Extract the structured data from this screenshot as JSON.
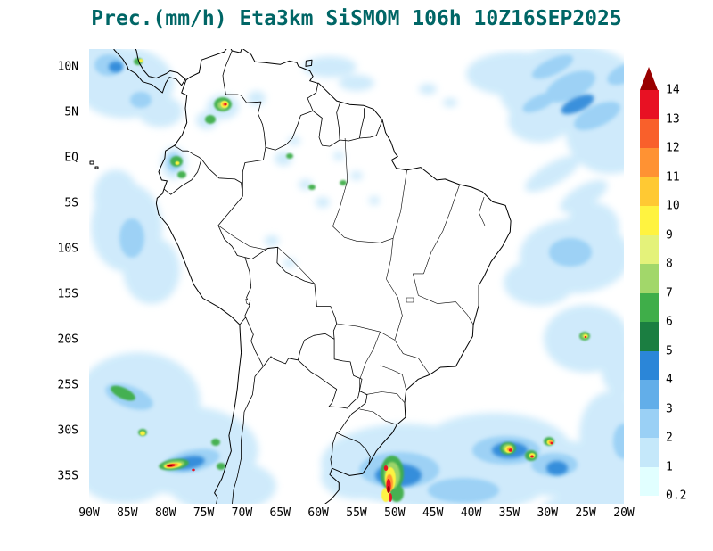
{
  "title": {
    "text": "Prec.(mm/h) Eta3km SiSMOM 106h 10Z16SEP2025",
    "color": "#006666"
  },
  "map": {
    "lat_labels": [
      "10N",
      "5N",
      "EQ",
      "5S",
      "10S",
      "15S",
      "20S",
      "25S",
      "30S",
      "35S"
    ],
    "lon_labels": [
      "90W",
      "85W",
      "80W",
      "75W",
      "70W",
      "65W",
      "60W",
      "55W",
      "50W",
      "45W",
      "40W",
      "35W",
      "30W",
      "25W",
      "20W"
    ]
  },
  "colorbar": {
    "levels": [
      "0.2",
      "1",
      "2",
      "3",
      "4",
      "5",
      "6",
      "7",
      "8",
      "9",
      "10",
      "11",
      "12",
      "13",
      "14"
    ],
    "segment_colors": [
      "#E1FFFF",
      "#C5E8FA",
      "#9AD0F5",
      "#62AEE9",
      "#2B86D8",
      "#1B7E41",
      "#3FAE49",
      "#A2D76A",
      "#E4F27A",
      "#FFF340",
      "#FFC933",
      "#FF9233",
      "#F9602B",
      "#E81123"
    ],
    "overflow_color": "#990000"
  },
  "chart_data": {
    "type": "heatmap",
    "title": "Prec.(mm/h) Eta3km SiSMOM 106h 10Z16SEP2025",
    "variable": "Prec.(mm/h)",
    "model": "Eta3km",
    "system": "SiSMOM",
    "forecast_hour": "106h",
    "valid_time": "10Z16SEP2025",
    "x_ticks": [
      "90W",
      "85W",
      "80W",
      "75W",
      "70W",
      "65W",
      "60W",
      "55W",
      "50W",
      "45W",
      "40W",
      "35W",
      "30W",
      "25W",
      "20W"
    ],
    "y_ticks": [
      "10N",
      "5N",
      "EQ",
      "5S",
      "10S",
      "15S",
      "20S",
      "25S",
      "30S",
      "35S"
    ],
    "color_scale_levels": [
      0.2,
      1,
      2,
      3,
      4,
      5,
      6,
      7,
      8,
      9,
      10,
      11,
      12,
      13,
      14
    ],
    "legend_position": "right"
  }
}
